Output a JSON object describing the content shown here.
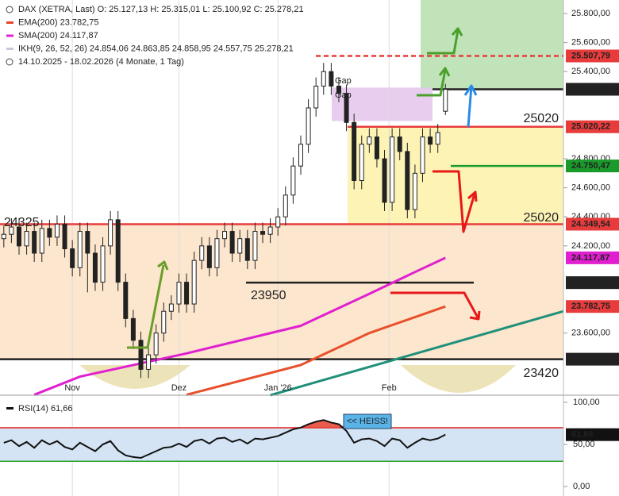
{
  "chart_data": [
    {
      "type": "candlestick",
      "legend": [
        {
          "text": "DAX (XETRA, Last)  O: 25.127,13  H: 25.315,01  L: 25.100,92  C: 25.278,21",
          "color": "#222222"
        },
        {
          "text": "EMA(200)  23.782,75",
          "color": "#e8442c"
        },
        {
          "text": "SMA(200)  24.117,87",
          "color": "#e020d0"
        },
        {
          "text": "IKH(9, 26, 52, 26)  24.854,06  24.863,85  24.858,95  24.557,75  25.278,21",
          "color": "#c8c8d8"
        },
        {
          "text": "14.10.2025 - 18.02.2026  (4 Monate, 1 Tag)",
          "color": "#222222"
        }
      ],
      "open": [
        24250,
        24280,
        24330,
        24200,
        24300,
        24150,
        24320,
        24260,
        24350,
        24180,
        24050,
        24300,
        24150,
        23950,
        24200,
        24380,
        23950,
        23700,
        23550,
        23350,
        23450,
        23600,
        23750,
        23800,
        23950,
        23800,
        24100,
        24200,
        24050,
        24250,
        24300,
        24150,
        24250,
        24100,
        24300,
        24280,
        24330,
        24400,
        24550,
        24750,
        24900,
        25150,
        25300,
        25400,
        25300,
        25250,
        25050,
        24650,
        24900,
        24950,
        24800,
        24500,
        24950,
        24850,
        24450,
        24700,
        24950,
        24900,
        25127.13
      ],
      "high": [
        24340,
        24390,
        24390,
        24360,
        24360,
        24380,
        24380,
        24410,
        24410,
        24240,
        24360,
        24360,
        24210,
        24260,
        24440,
        24440,
        24010,
        23760,
        23610,
        23510,
        23660,
        23810,
        23860,
        24010,
        24010,
        24160,
        24260,
        24260,
        24310,
        24360,
        24360,
        24310,
        24310,
        24360,
        24360,
        24390,
        24460,
        24610,
        24810,
        24960,
        25210,
        25360,
        25460,
        25460,
        25360,
        25310,
        25110,
        24960,
        25010,
        25010,
        24860,
        25010,
        25010,
        24910,
        24760,
        25010,
        25010,
        25040,
        25315.01
      ],
      "low": [
        24190,
        24220,
        24140,
        24140,
        24090,
        24090,
        24200,
        24200,
        24120,
        23990,
        23990,
        23880,
        23890,
        23890,
        24140,
        23890,
        23640,
        23490,
        23290,
        23290,
        23390,
        23540,
        23690,
        23740,
        23740,
        23740,
        24040,
        23990,
        23990,
        24190,
        24090,
        24090,
        24040,
        24040,
        24220,
        24220,
        24270,
        24340,
        24490,
        24690,
        24840,
        25090,
        25240,
        25240,
        25190,
        24990,
        24590,
        24590,
        24840,
        24740,
        24440,
        24440,
        24790,
        24390,
        24390,
        24640,
        24840,
        24840,
        25100.92
      ],
      "close": [
        24280,
        24330,
        24200,
        24300,
        24150,
        24320,
        24260,
        24350,
        24180,
        24050,
        24300,
        24150,
        23950,
        24200,
        24380,
        23950,
        23700,
        23550,
        23350,
        23450,
        23600,
        23750,
        23800,
        23950,
        23800,
        24100,
        24200,
        24050,
        24250,
        24300,
        24150,
        24250,
        24100,
        24300,
        24280,
        24330,
        24400,
        24550,
        24750,
        24900,
        25150,
        25300,
        25400,
        25300,
        25250,
        25050,
        24650,
        24900,
        24950,
        24800,
        24500,
        24950,
        24850,
        24450,
        24700,
        24950,
        24900,
        24980,
        25278.21
      ],
      "xlim": [
        -0.5,
        73.5
      ],
      "xticks": [
        {
          "value": 9,
          "label": "Nov"
        },
        {
          "value": 23,
          "label": "Dez"
        },
        {
          "value": 36,
          "label": "Jan '26"
        },
        {
          "value": 50.6,
          "label": "Feb"
        }
      ],
      "ylim": [
        23172,
        25893
      ],
      "yticks": [
        {
          "value": 23600,
          "label": "23.600,00"
        },
        {
          "value": 24200,
          "label": "24.200,00"
        },
        {
          "value": 24400,
          "label": "24.400,00"
        },
        {
          "value": 24600,
          "label": "24.600,00"
        },
        {
          "value": 24800,
          "label": "24.800,00"
        },
        {
          "value": 25400,
          "label": "25.400,00"
        },
        {
          "value": 25600,
          "label": "25.600,00"
        },
        {
          "value": 25800,
          "label": "25.800,00"
        }
      ],
      "zones": [
        {
          "top": 24349.54,
          "bottom": 23420,
          "color": "#fbe2c4"
        },
        {
          "top": 25020.22,
          "bottom": 24349.54,
          "color": "#fbf1a8"
        },
        {
          "top": 25893,
          "bottom": 25278.21,
          "color": "#b6deae"
        },
        {
          "top": 25290,
          "bottom": 25060,
          "color": "#e4c4ec"
        }
      ],
      "indicators": [
        {
          "name": "SMA(200)",
          "color": "#e020d0",
          "x": [
            4,
            10,
            24,
            39,
            48,
            54,
            58
          ],
          "values": [
            23175,
            23300,
            23460,
            23650,
            23870,
            24020,
            24117.87
          ]
        },
        {
          "name": "EMA(200)",
          "color": "#e8502c",
          "x": [
            24,
            39,
            48,
            58
          ],
          "values": [
            23175,
            23380,
            23600,
            23782.75
          ]
        },
        {
          "name": "IKH",
          "color": "#20907a",
          "x": [
            35,
            73.5
          ],
          "values": [
            23172,
            23750
          ]
        }
      ],
      "levels": [
        {
          "value": 25507.79,
          "label": "25.507,79",
          "color": "#e83c3c"
        },
        {
          "value": 25278.21,
          "label": "25.278,21",
          "color": "#222222"
        },
        {
          "value": 25020.22,
          "label": "25.020,22",
          "color": "#e83c3c"
        },
        {
          "value": 24750.47,
          "label": "24.750,47",
          "color": "#1a9a2a"
        },
        {
          "value": 24349.54,
          "label": "24.349,54",
          "color": "#e83c3c"
        },
        {
          "value": 24117.87,
          "label": "24.117,87",
          "color": "#e020d0"
        },
        {
          "value": 23947.03,
          "label": "23.947,03",
          "color": "#222222"
        },
        {
          "value": 23782.75,
          "label": "23.782,75",
          "color": "#e83c3c"
        },
        {
          "value": 23420,
          "label": "23.420,00",
          "color": "#222222"
        }
      ],
      "annotations": [
        "24325",
        "23950",
        "23420",
        "25020",
        "25020",
        "Gap",
        "Gap"
      ]
    },
    {
      "type": "line",
      "title": "RSI(14)  61,66",
      "badge": "<< HEISS!",
      "value_label": "61,66",
      "values": [
        52,
        55,
        48,
        53,
        46,
        55,
        50,
        54,
        47,
        44,
        52,
        47,
        42,
        50,
        54,
        43,
        37,
        35,
        34,
        38,
        42,
        46,
        47,
        51,
        47,
        54,
        56,
        51,
        57,
        58,
        53,
        56,
        51,
        57,
        56,
        58,
        60,
        64,
        68,
        70,
        74,
        77,
        79,
        76,
        74,
        66,
        52,
        56,
        57,
        54,
        48,
        57,
        55,
        46,
        52,
        57,
        55,
        57,
        61.66
      ],
      "color": "#111111",
      "ylim": [
        -9.4,
        108.5
      ],
      "yticks": [
        {
          "value": 0,
          "label": "0,00"
        },
        {
          "value": 50,
          "label": "50,00"
        },
        {
          "value": 100,
          "label": "100,00"
        }
      ],
      "bands": [
        {
          "value": 70,
          "color": "#e83c3c"
        },
        {
          "value": 30,
          "color": "#2aa02a"
        }
      ]
    }
  ]
}
